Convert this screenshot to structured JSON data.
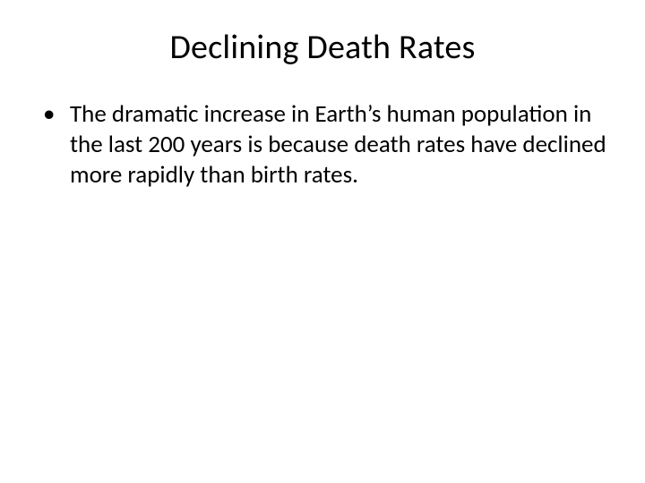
{
  "slide": {
    "title": "Declining Death Rates",
    "bullets": [
      "The dramatic increase in Earth’s human population in the last 200 years is because death rates have declined more rapidly than birth rates."
    ],
    "title_fontsize": 38,
    "body_fontsize": 27,
    "title_align": "center",
    "text_color": "#000000",
    "background_color": "#ffffff",
    "font_family": "Calibri"
  }
}
